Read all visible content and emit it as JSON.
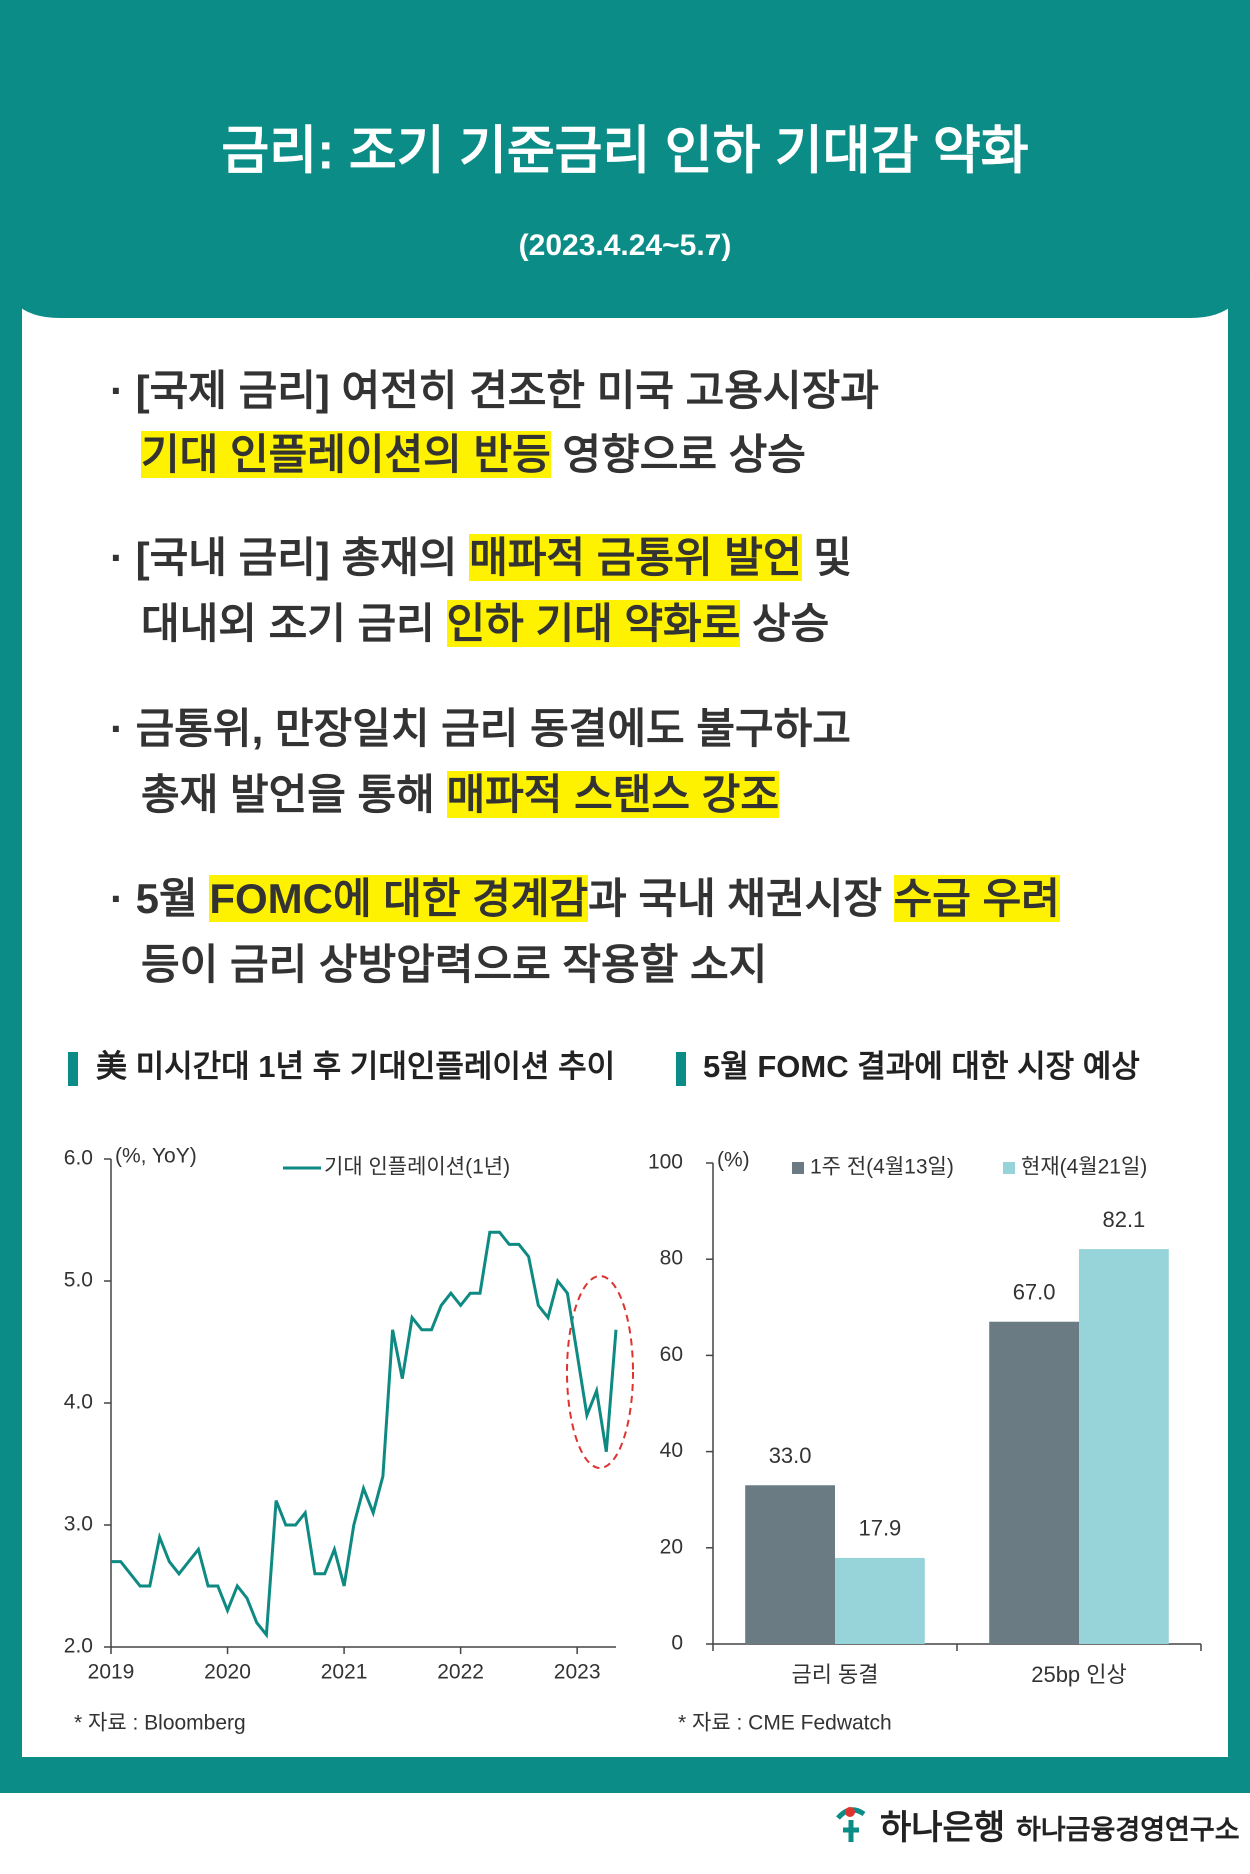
{
  "header": {
    "title": "금리: 조기 기준금리 인하 기대감 약화",
    "date": "(2023.4.24~5.7)"
  },
  "bullets": [
    {
      "lines": [
        [
          {
            "text": "· [국제 금리] 여전히 견조한 미국 고용시장과"
          }
        ],
        [
          {
            "text": "기대 인플레이션의 반등",
            "hl": true
          },
          {
            "text": " 영향으로 상승"
          }
        ]
      ]
    },
    {
      "lines": [
        [
          {
            "text": "· [국내 금리] 총재의 "
          },
          {
            "text": "매파적 금통위 발언",
            "hl": true
          },
          {
            "text": " 및"
          }
        ],
        [
          {
            "text": "대내외 조기 금리 "
          },
          {
            "text": "인하 기대 약화로",
            "hl": true
          },
          {
            "text": " 상승"
          }
        ]
      ]
    },
    {
      "lines": [
        [
          {
            "text": "· 금통위, 만장일치 금리 동결에도 불구하고"
          }
        ],
        [
          {
            "text": "총재 발언을 통해 "
          },
          {
            "text": "매파적 스탠스 강조",
            "hl": true
          }
        ]
      ]
    },
    {
      "lines": [
        [
          {
            "text": "· 5월 "
          },
          {
            "text": "FOMC에 대한 경계감",
            "hl": true
          },
          {
            "text": "과 국내 채권시장 "
          },
          {
            "text": "수급 우려",
            "hl": true
          }
        ],
        [
          {
            "text": "등이 금리 상방압력으로 작용할 소지"
          }
        ]
      ]
    }
  ],
  "chart_data": [
    {
      "type": "line",
      "title": "美 미시간대 1년 후 기대인플레이션 추이",
      "y_label": "(%, YoY)",
      "source": "* 자료 : Bloomberg",
      "categories": [
        "2019",
        null,
        null,
        null,
        null,
        null,
        null,
        null,
        null,
        null,
        null,
        null,
        "2020",
        null,
        null,
        null,
        null,
        null,
        null,
        null,
        null,
        null,
        null,
        null,
        "2021",
        null,
        null,
        null,
        null,
        null,
        null,
        null,
        null,
        null,
        null,
        null,
        "2022",
        null,
        null,
        null,
        null,
        null,
        null,
        null,
        null,
        null,
        null,
        null,
        "2023",
        null,
        null,
        null,
        null
      ],
      "series": [
        {
          "name": "기대 인플레이션(1년)",
          "color": "#0e8a83",
          "values": [
            2.7,
            2.7,
            2.6,
            2.5,
            2.5,
            2.9,
            2.7,
            2.6,
            2.7,
            2.8,
            2.5,
            2.5,
            2.3,
            2.5,
            2.4,
            2.2,
            2.1,
            3.2,
            3.0,
            3.0,
            3.1,
            2.6,
            2.6,
            2.8,
            2.5,
            3.0,
            3.3,
            3.1,
            3.4,
            4.6,
            4.2,
            4.7,
            4.6,
            4.6,
            4.8,
            4.9,
            4.8,
            4.9,
            4.9,
            5.4,
            5.4,
            5.3,
            5.3,
            5.2,
            4.8,
            4.7,
            5.0,
            4.9,
            4.4,
            3.9,
            4.1,
            3.6,
            4.6
          ]
        }
      ],
      "ylim": [
        2,
        6
      ],
      "yticks": [
        {
          "value": 2,
          "label": "2.0"
        },
        {
          "value": 3,
          "label": "3.0"
        },
        {
          "value": 4,
          "label": "4.0"
        },
        {
          "value": 5,
          "label": "5.0"
        },
        {
          "value": 6,
          "label": "6.0"
        }
      ],
      "grid": false
    },
    {
      "type": "bar",
      "title": "5월 FOMC 결과에 대한 시장 예상",
      "y_label": "(%)",
      "source": "* 자료 : CME Fedwatch",
      "categories": [
        "금리 동결",
        "25bp 인상"
      ],
      "series": [
        {
          "name": "1주 전(4월13일)",
          "color": "#6a7b84",
          "values": [
            33.0,
            67.0
          ],
          "value_labels": [
            "33.0",
            "67.0"
          ]
        },
        {
          "name": "현재(4월21일)",
          "color": "#96d4d9",
          "values": [
            17.9,
            82.1
          ],
          "value_labels": [
            "17.9",
            "82.1"
          ]
        }
      ],
      "ylim": [
        0,
        100
      ],
      "yticks": [
        0,
        20,
        40,
        60,
        80,
        100
      ],
      "grid": false
    }
  ],
  "footer": {
    "bank": "하나은행",
    "institute": "하나금융경영연구소"
  }
}
